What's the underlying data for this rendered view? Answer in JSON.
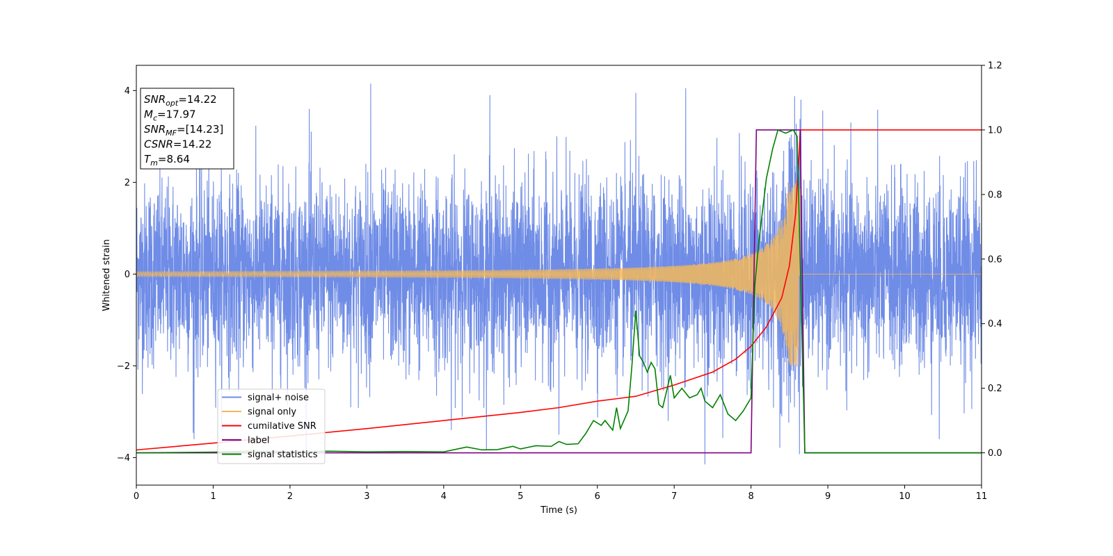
{
  "chart_data": {
    "type": "line",
    "xlabel": "Time (s)",
    "ylabel": "Whitened strain",
    "xlim": [
      0,
      11
    ],
    "ylim": [
      -4.6,
      4.55
    ],
    "y2lim": [
      -0.1,
      1.2
    ],
    "x_ticks": [
      "0",
      "1",
      "2",
      "3",
      "4",
      "5",
      "6",
      "7",
      "8",
      "9",
      "10",
      "11"
    ],
    "y_ticks": [
      "−4",
      "−2",
      "0",
      "2",
      "4"
    ],
    "y2_ticks": [
      "0.0",
      "0.2",
      "0.4",
      "0.6",
      "0.8",
      "1.0",
      "1.2"
    ],
    "grid": false,
    "legend_position": "lower-left",
    "annotation_box": [
      {
        "base": "SNR",
        "sub": "opt",
        "value": "=14.22"
      },
      {
        "base": "M",
        "sub": "c",
        "value": "=17.97"
      },
      {
        "base": "SNR",
        "sub": "MF",
        "value": "=[14.23]"
      },
      {
        "base": "CSNR",
        "sub": "",
        "value": "=14.22"
      },
      {
        "base": "T",
        "sub": "m",
        "value": "=8.64"
      }
    ],
    "series": [
      {
        "name": "signal+ noise",
        "axis": "left",
        "color": "#6f8ce6",
        "description_kind": "noise",
        "envelope_mean": 0,
        "envelope_std": 1.0,
        "peaks": [
          [
            3.05,
            4.15
          ],
          [
            6.5,
            3.95
          ],
          [
            7.15,
            4.05
          ],
          [
            8.65,
            3.8
          ],
          [
            2.25,
            3.6
          ],
          [
            4.6,
            3.9
          ],
          [
            7.4,
            -4.15
          ],
          [
            5.5,
            -3.5
          ],
          [
            4.1,
            -3.4
          ],
          [
            0.75,
            -3.6
          ],
          [
            10.45,
            -3.6
          ]
        ]
      },
      {
        "name": "signal only",
        "axis": "left",
        "color": "#f5b85a",
        "chirp": {
          "t_merge": 8.64,
          "amp_start": 0.05,
          "amp_merge": 2.0,
          "post_merge": 0
        }
      },
      {
        "name": "cumilative SNR",
        "axis": "right",
        "color": "#ff0000",
        "points": [
          [
            0,
            0.009
          ],
          [
            1,
            0.03
          ],
          [
            2,
            0.052
          ],
          [
            3,
            0.075
          ],
          [
            4,
            0.1
          ],
          [
            5,
            0.125
          ],
          [
            5.5,
            0.14
          ],
          [
            6,
            0.16
          ],
          [
            6.5,
            0.175
          ],
          [
            7,
            0.21
          ],
          [
            7.5,
            0.25
          ],
          [
            7.8,
            0.29
          ],
          [
            8.0,
            0.33
          ],
          [
            8.2,
            0.39
          ],
          [
            8.4,
            0.48
          ],
          [
            8.5,
            0.58
          ],
          [
            8.58,
            0.74
          ],
          [
            8.62,
            0.9
          ],
          [
            8.64,
            1.0
          ],
          [
            11,
            1.0
          ]
        ]
      },
      {
        "name": "label",
        "axis": "right",
        "color": "#800080",
        "points": [
          [
            0,
            0.0
          ],
          [
            8.0,
            0.0
          ],
          [
            8.07,
            1.0
          ],
          [
            8.64,
            1.0
          ],
          [
            8.7,
            0.0
          ],
          [
            11,
            0.0
          ]
        ]
      },
      {
        "name": "signal statistics",
        "axis": "right",
        "color": "#008000",
        "points": [
          [
            0,
            0.0
          ],
          [
            1,
            0.002
          ],
          [
            1.5,
            0.005
          ],
          [
            2,
            0.004
          ],
          [
            2.5,
            0.005
          ],
          [
            3,
            0.003
          ],
          [
            3.5,
            0.004
          ],
          [
            4,
            0.003
          ],
          [
            4.3,
            0.018
          ],
          [
            4.5,
            0.009
          ],
          [
            4.7,
            0.01
          ],
          [
            4.9,
            0.02
          ],
          [
            5.0,
            0.012
          ],
          [
            5.2,
            0.022
          ],
          [
            5.4,
            0.02
          ],
          [
            5.5,
            0.035
          ],
          [
            5.6,
            0.026
          ],
          [
            5.75,
            0.028
          ],
          [
            5.85,
            0.06
          ],
          [
            5.95,
            0.1
          ],
          [
            6.05,
            0.085
          ],
          [
            6.1,
            0.1
          ],
          [
            6.2,
            0.07
          ],
          [
            6.25,
            0.14
          ],
          [
            6.3,
            0.075
          ],
          [
            6.4,
            0.13
          ],
          [
            6.45,
            0.27
          ],
          [
            6.5,
            0.44
          ],
          [
            6.55,
            0.3
          ],
          [
            6.6,
            0.28
          ],
          [
            6.65,
            0.25
          ],
          [
            6.7,
            0.28
          ],
          [
            6.75,
            0.26
          ],
          [
            6.8,
            0.15
          ],
          [
            6.85,
            0.14
          ],
          [
            6.95,
            0.24
          ],
          [
            7.0,
            0.17
          ],
          [
            7.1,
            0.2
          ],
          [
            7.2,
            0.17
          ],
          [
            7.3,
            0.18
          ],
          [
            7.35,
            0.2
          ],
          [
            7.4,
            0.16
          ],
          [
            7.5,
            0.14
          ],
          [
            7.6,
            0.18
          ],
          [
            7.7,
            0.12
          ],
          [
            7.8,
            0.1
          ],
          [
            7.9,
            0.13
          ],
          [
            8.0,
            0.17
          ],
          [
            8.05,
            0.52
          ],
          [
            8.1,
            0.65
          ],
          [
            8.2,
            0.85
          ],
          [
            8.28,
            0.94
          ],
          [
            8.35,
            1.0
          ],
          [
            8.45,
            0.99
          ],
          [
            8.55,
            1.0
          ],
          [
            8.6,
            0.98
          ],
          [
            8.65,
            0.5
          ],
          [
            8.7,
            0.0
          ],
          [
            11,
            0.0
          ]
        ]
      }
    ]
  }
}
